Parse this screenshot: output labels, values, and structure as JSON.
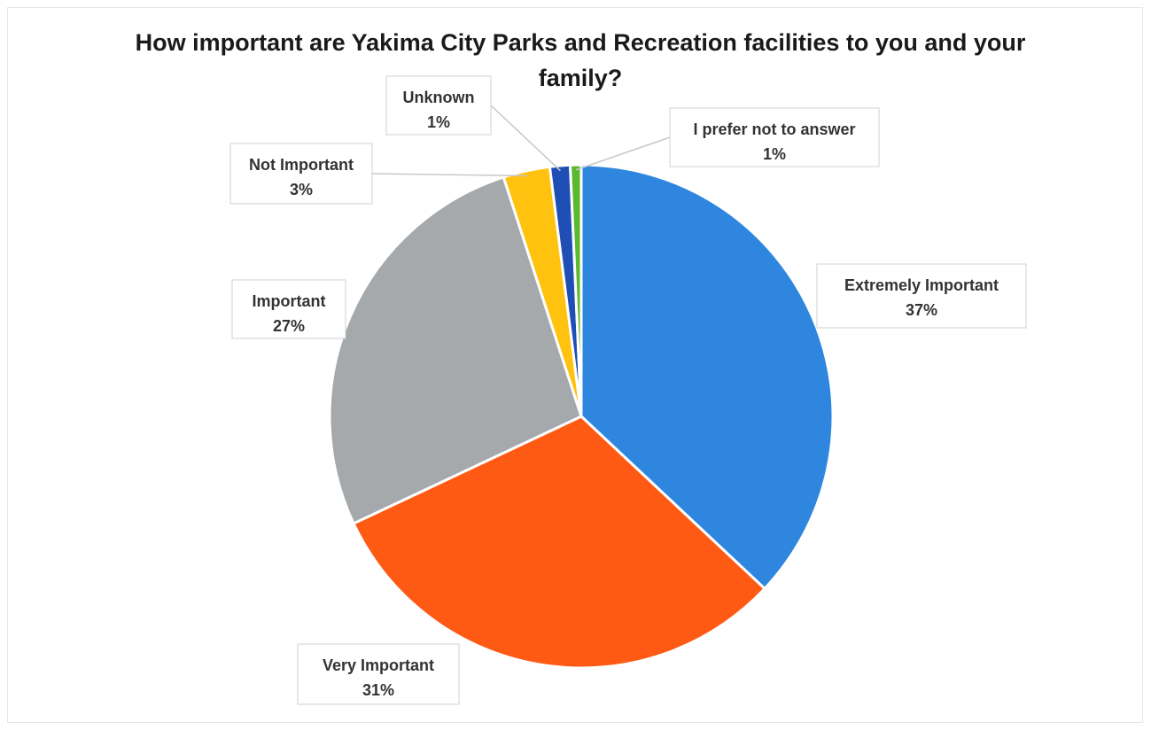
{
  "chart_data": {
    "type": "pie",
    "title": "How important are Yakima City Parks and Recreation facilities to you and your family?",
    "slices": [
      {
        "label": "Extremely Important",
        "value": 37,
        "value_label": "37%",
        "color": "#2E86DE"
      },
      {
        "label": "Very Important",
        "value": 31,
        "value_label": "31%",
        "color": "#FF5A14"
      },
      {
        "label": "Important",
        "value": 27,
        "value_label": "27%",
        "color": "#A5A9AC"
      },
      {
        "label": "Not Important",
        "value": 3,
        "value_label": "3%",
        "color": "#FFC20E"
      },
      {
        "label": "Unknown",
        "value": 1.3,
        "value_label": "1%",
        "color": "#1F4FB5"
      },
      {
        "label": "I prefer not to answer",
        "value": 0.7,
        "value_label": "1%",
        "color": "#5CB82E"
      }
    ],
    "legend": "none",
    "data_labels": "callouts"
  }
}
